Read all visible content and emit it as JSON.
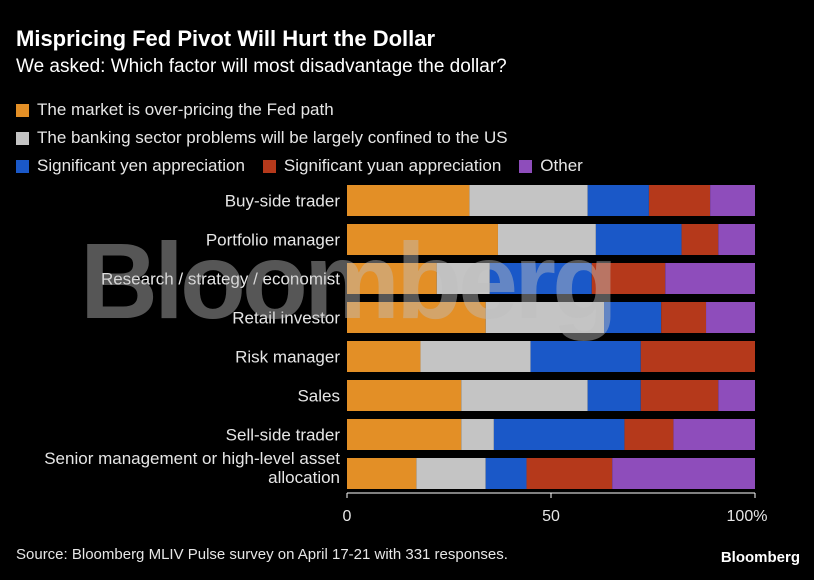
{
  "header": {
    "title": "Mispricing Fed Pivot Will Hurt the Dollar",
    "subtitle": "We asked: Which factor will most disadvantage the dollar?"
  },
  "footer": {
    "source": "Source: Bloomberg MLIV Pulse survey on April 17-21 with 331 responses.",
    "brand": "Bloomberg"
  },
  "watermark": "Bloomberg",
  "chart_data": {
    "type": "bar",
    "orientation": "horizontal",
    "stacked": true,
    "xlim": [
      0,
      100
    ],
    "ticks": [
      "0",
      "50",
      "100%"
    ],
    "tick_values": [
      0,
      50,
      100
    ],
    "categories": [
      "Buy-side trader",
      "Portfolio manager",
      "Research / strategy / economist",
      "Retail investor",
      "Risk manager",
      "Sales",
      "Sell-side trader",
      "Senior management or high-level asset allocation"
    ],
    "series": [
      {
        "name": "The market is over-pricing the Fed path",
        "color": "#e38f26",
        "values": [
          30,
          37,
          22,
          34,
          18,
          28,
          28,
          17
        ]
      },
      {
        "name": "The banking sector problems will be largely confined to the US",
        "color": "#c4c4c4",
        "values": [
          29,
          24,
          13,
          29,
          27,
          31,
          8,
          17
        ]
      },
      {
        "name": "Significant yen appreciation",
        "color": "#1a58c8",
        "values": [
          15,
          21,
          25,
          14,
          27,
          13,
          32,
          10
        ]
      },
      {
        "name": "Significant yuan appreciation",
        "color": "#b5391b",
        "values": [
          15,
          9,
          18,
          11,
          28,
          19,
          12,
          21
        ]
      },
      {
        "name": "Other",
        "color": "#8e4dbb",
        "values": [
          11,
          9,
          22,
          12,
          0,
          9,
          20,
          35
        ]
      }
    ]
  }
}
